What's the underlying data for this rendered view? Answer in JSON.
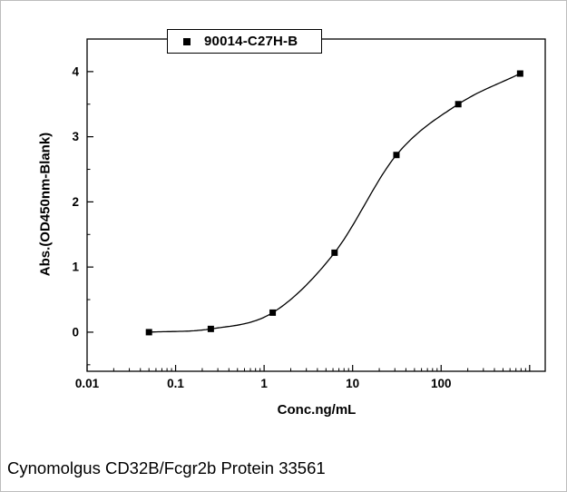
{
  "window": {
    "background": "#ffffff",
    "border_color": "#bdbdbd",
    "ink_color": "#000000"
  },
  "caption": "Cynomolgus CD32B/Fcgr2b Protein 33561",
  "legend": {
    "label": "90014-C27H-B",
    "marker": "black-filled-square"
  },
  "chart_data": {
    "type": "scatter",
    "title": "",
    "xlabel": "Conc.ng/mL",
    "ylabel": "Abs.(OD450nm-Blank)",
    "x_scale": "log",
    "xlim": [
      0.01,
      1500
    ],
    "ylim": [
      -0.6,
      4.5
    ],
    "x_major_ticks": [
      0.01,
      0.1,
      1,
      10,
      100,
      1000
    ],
    "x_tick_labels": [
      "0.01",
      "0.1",
      "1",
      "10",
      "100",
      ""
    ],
    "y_major_ticks": [
      0,
      1,
      2,
      3,
      4
    ],
    "y_tick_labels": [
      "0",
      "1",
      "2",
      "3",
      "4"
    ],
    "y_minor_step": 0.5,
    "grid": false,
    "legend_position": "top-center",
    "curve": "sigmoidal-fit-through-points",
    "series": [
      {
        "name": "90014-C27H-B",
        "marker": "square",
        "color": "#000000",
        "x": [
          0.05,
          0.25,
          1.25,
          6.25,
          31.25,
          156.25,
          781.25
        ],
        "y": [
          0.0,
          0.05,
          0.3,
          1.22,
          2.72,
          3.5,
          3.97
        ]
      }
    ]
  }
}
